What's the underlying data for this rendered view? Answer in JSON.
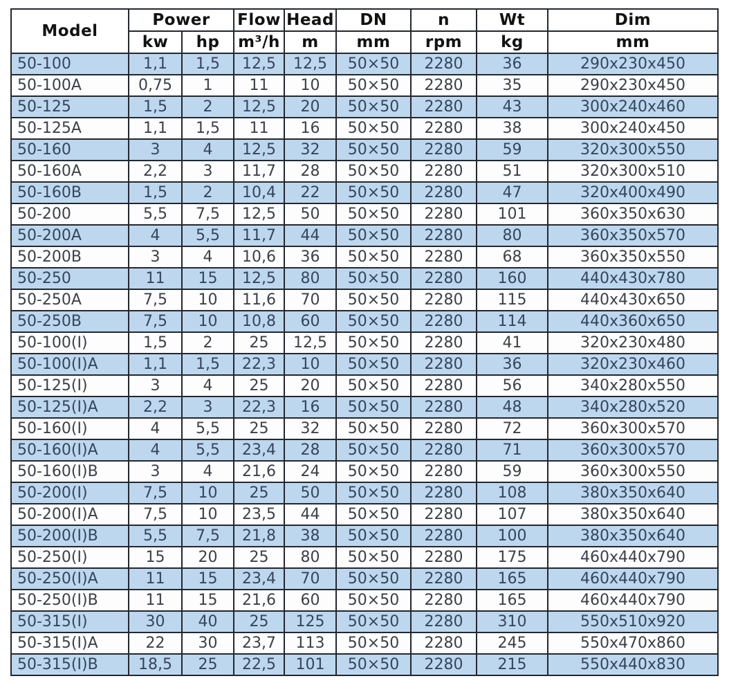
{
  "table": {
    "header": {
      "groups": [
        {
          "label": "Model"
        },
        {
          "label": "Power"
        },
        {
          "label": "Flow"
        },
        {
          "label": "Head"
        },
        {
          "label": "DN"
        },
        {
          "label": "n"
        },
        {
          "label": "Wt"
        },
        {
          "label": "Dim"
        }
      ],
      "units": [
        "kw",
        "hp",
        "m³/h",
        "m",
        "mm",
        "rpm",
        "kg",
        "mm"
      ]
    },
    "rows": [
      [
        "50-100",
        "1,1",
        "1,5",
        "12,5",
        "12,5",
        "50×50",
        "2280",
        "36",
        "290x230x450"
      ],
      [
        "50-100A",
        "0,75",
        "1",
        "11",
        "10",
        "50×50",
        "2280",
        "35",
        "290x230x450"
      ],
      [
        "50-125",
        "1,5",
        "2",
        "12,5",
        "20",
        "50×50",
        "2280",
        "43",
        "300x240x460"
      ],
      [
        "50-125A",
        "1,1",
        "1,5",
        "11",
        "16",
        "50×50",
        "2280",
        "38",
        "300x240x450"
      ],
      [
        "50-160",
        "3",
        "4",
        "12,5",
        "32",
        "50×50",
        "2280",
        "59",
        "320x300x550"
      ],
      [
        "50-160A",
        "2,2",
        "3",
        "11,7",
        "28",
        "50×50",
        "2280",
        "51",
        "320x300x510"
      ],
      [
        "50-160B",
        "1,5",
        "2",
        "10,4",
        "22",
        "50×50",
        "2280",
        "47",
        "320x400x490"
      ],
      [
        "50-200",
        "5,5",
        "7,5",
        "12,5",
        "50",
        "50×50",
        "2280",
        "101",
        "360x350x630"
      ],
      [
        "50-200A",
        "4",
        "5,5",
        "11,7",
        "44",
        "50×50",
        "2280",
        "80",
        "360x350x570"
      ],
      [
        "50-200B",
        "3",
        "4",
        "10,6",
        "36",
        "50×50",
        "2280",
        "68",
        "360x350x550"
      ],
      [
        "50-250",
        "11",
        "15",
        "12,5",
        "80",
        "50×50",
        "2280",
        "160",
        "440x430x780"
      ],
      [
        "50-250A",
        "7,5",
        "10",
        "11,6",
        "70",
        "50×50",
        "2280",
        "115",
        "440x430x650"
      ],
      [
        "50-250B",
        "7,5",
        "10",
        "10,8",
        "60",
        "50×50",
        "2280",
        "114",
        "440x360x650"
      ],
      [
        "50-100(I)",
        "1,5",
        "2",
        "25",
        "12,5",
        "50×50",
        "2280",
        "41",
        "320x230x480"
      ],
      [
        "50-100(I)A",
        "1,1",
        "1,5",
        "22,3",
        "10",
        "50×50",
        "2280",
        "36",
        "320x230x460"
      ],
      [
        "50-125(I)",
        "3",
        "4",
        "25",
        "20",
        "50×50",
        "2280",
        "56",
        "340x280x550"
      ],
      [
        "50-125(I)A",
        "2,2",
        "3",
        "22,3",
        "16",
        "50×50",
        "2280",
        "48",
        "340x280x520"
      ],
      [
        "50-160(I)",
        "4",
        "5,5",
        "25",
        "32",
        "50×50",
        "2280",
        "72",
        "360x300x570"
      ],
      [
        "50-160(I)A",
        "4",
        "5,5",
        "23,4",
        "28",
        "50×50",
        "2280",
        "71",
        "360x300x570"
      ],
      [
        "50-160(I)B",
        "3",
        "4",
        "21,6",
        "24",
        "50×50",
        "2280",
        "59",
        "360x300x550"
      ],
      [
        "50-200(I)",
        "7,5",
        "10",
        "25",
        "50",
        "50×50",
        "2280",
        "108",
        "380x350x640"
      ],
      [
        "50-200(I)A",
        "7,5",
        "10",
        "23,5",
        "44",
        "50×50",
        "2280",
        "107",
        "380x350x640"
      ],
      [
        "50-200(I)B",
        "5,5",
        "7,5",
        "21,8",
        "38",
        "50×50",
        "2280",
        "100",
        "380x350x640"
      ],
      [
        "50-250(I)",
        "15",
        "20",
        "25",
        "80",
        "50×50",
        "2280",
        "175",
        "460x440x790"
      ],
      [
        "50-250(I)A",
        "11",
        "15",
        "23,4",
        "70",
        "50×50",
        "2280",
        "165",
        "460x440x790"
      ],
      [
        "50-250(I)B",
        "11",
        "15",
        "21,6",
        "60",
        "50×50",
        "2280",
        "165",
        "460x440x790"
      ],
      [
        "50-315(I)",
        "30",
        "40",
        "25",
        "125",
        "50×50",
        "2280",
        "310",
        "550x510x920"
      ],
      [
        "50-315(I)A",
        "22",
        "30",
        "23,7",
        "113",
        "50×50",
        "2280",
        "245",
        "550x470x860"
      ],
      [
        "50-315(I)B",
        "18,5",
        "25",
        "22,5",
        "101",
        "50×50",
        "2280",
        "215",
        "550x440x830"
      ]
    ]
  },
  "colors": {
    "row_shade": "#BDD7EE",
    "row_plain": "#FDFDFD",
    "border": "#23272E",
    "header_text": "#121212",
    "cell_text_shaded": "#35465C",
    "cell_text_plain": "#3C4049"
  }
}
